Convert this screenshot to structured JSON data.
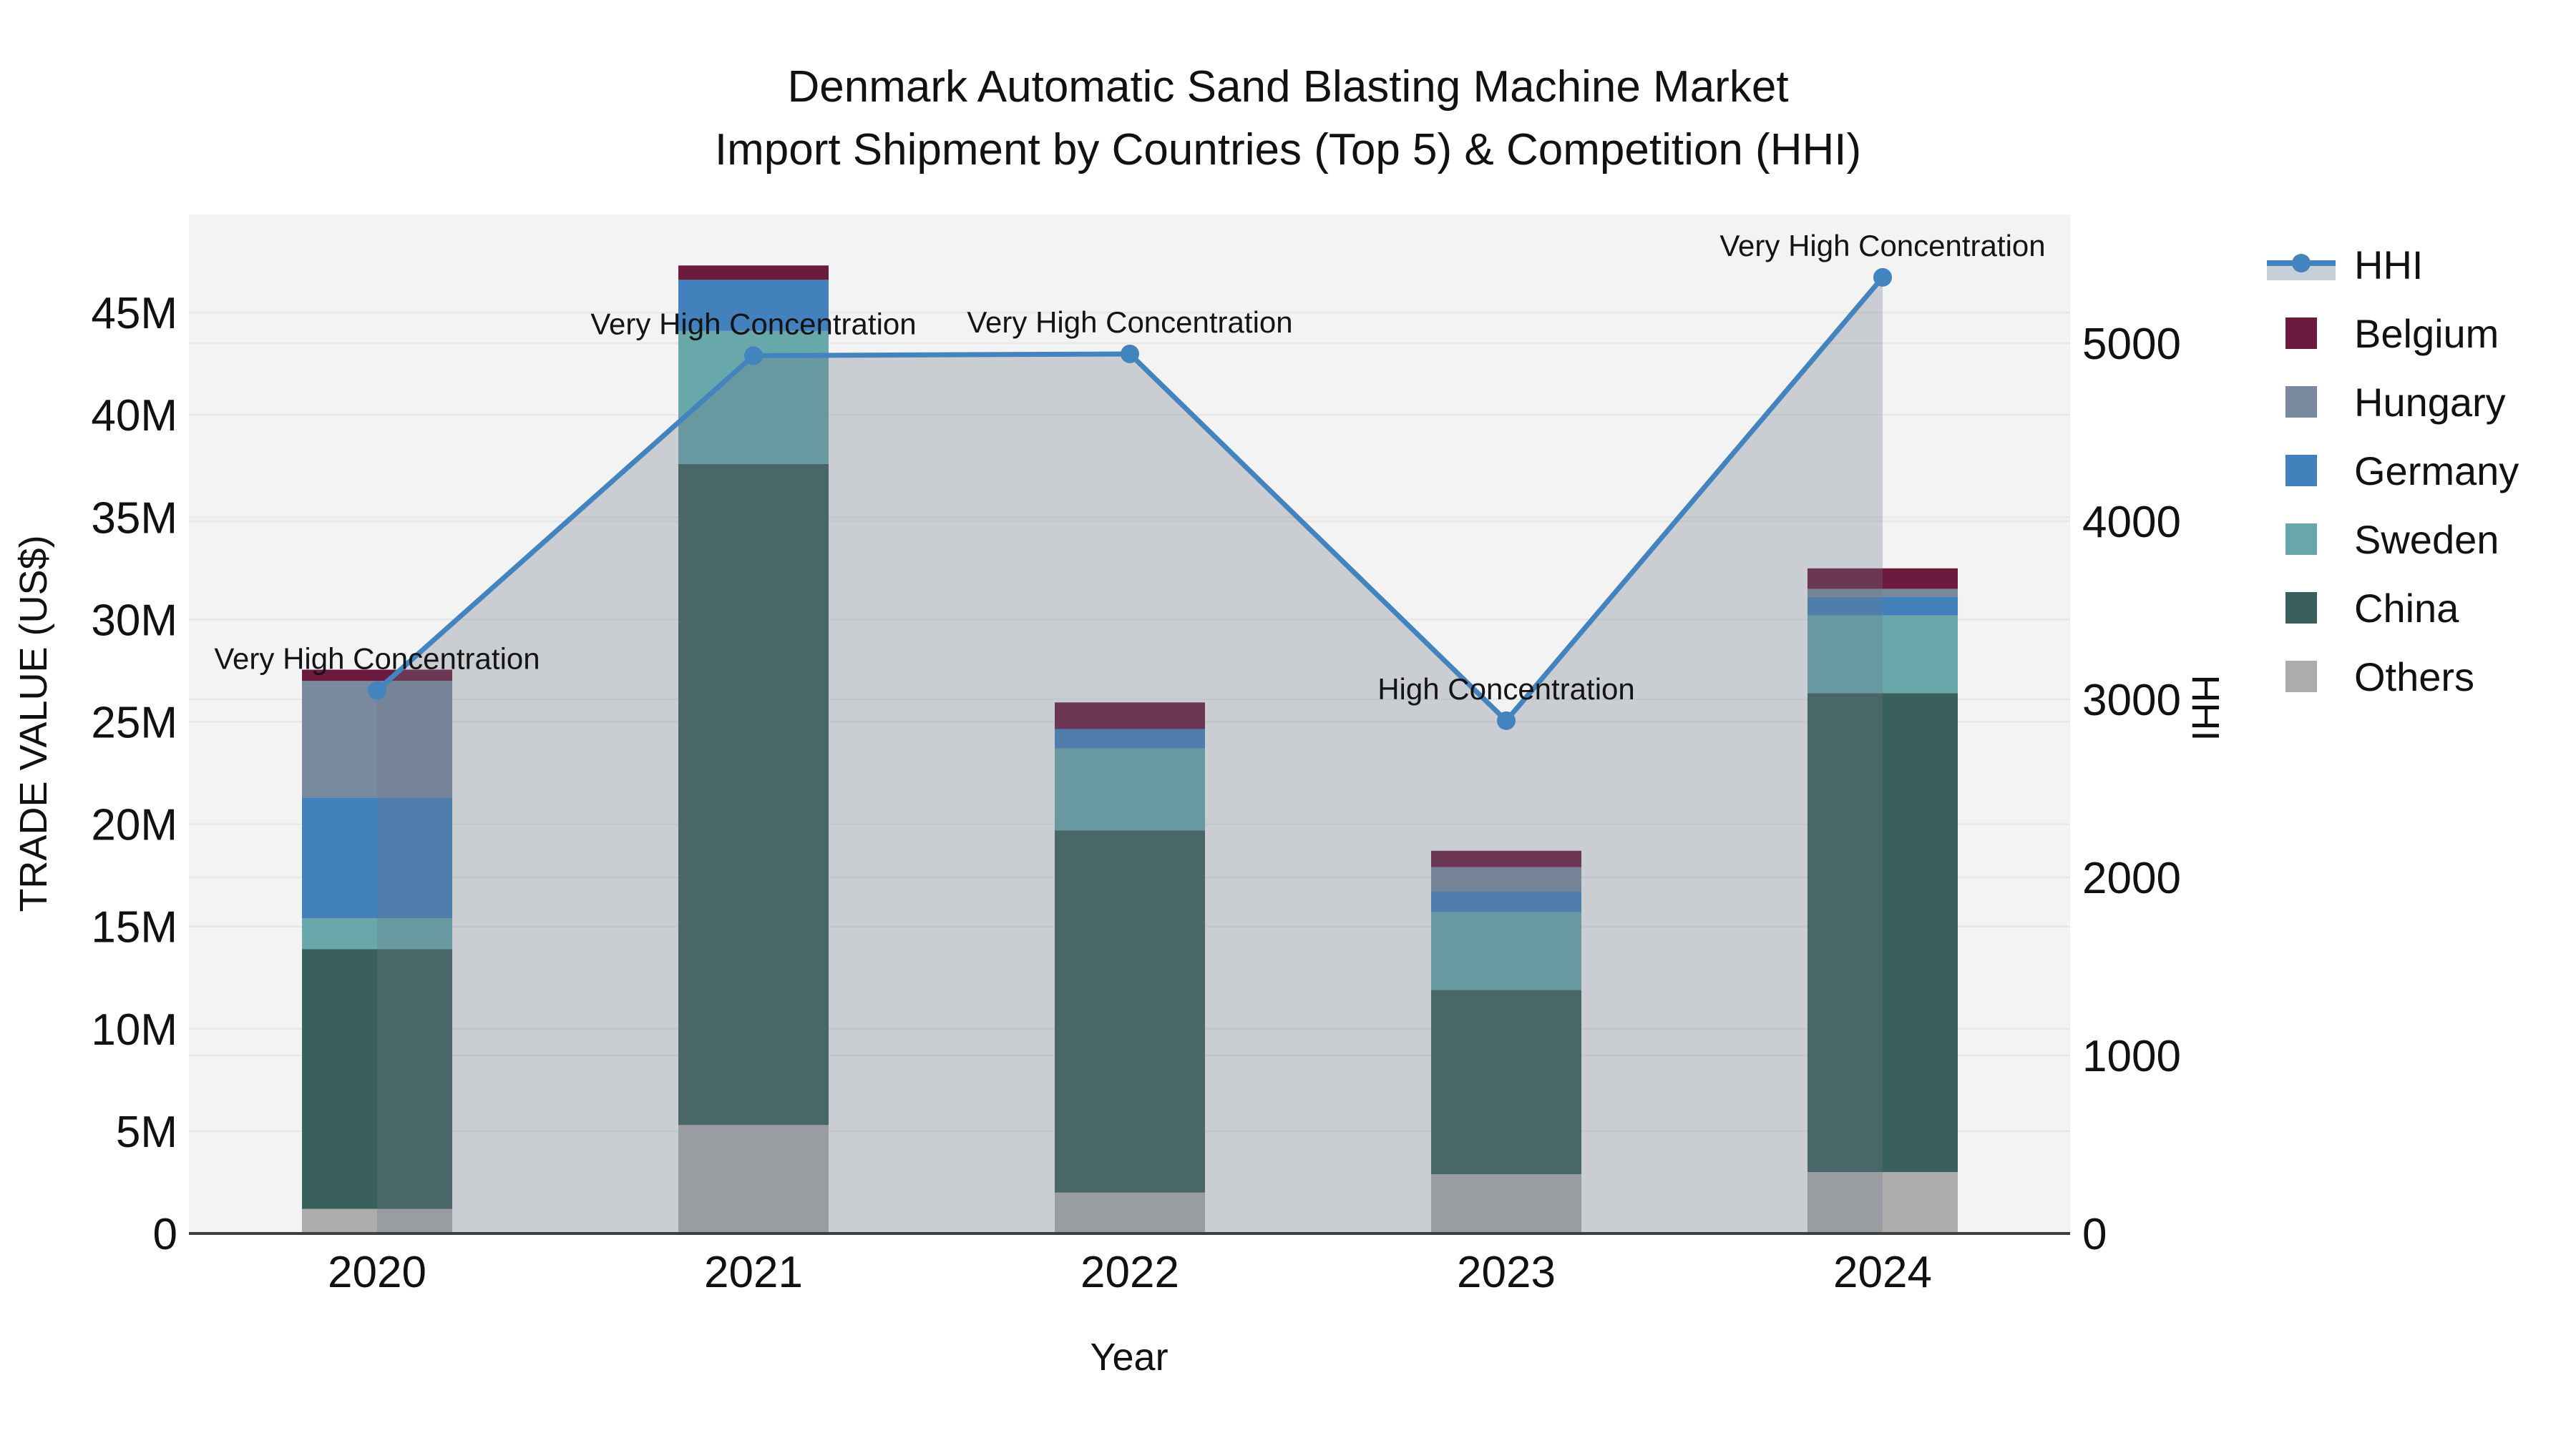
{
  "title": {
    "line1": "Denmark Automatic Sand Blasting Machine Market",
    "line2": "Import Shipment by Countries (Top 5) & Competition (HHI)"
  },
  "chart_data": {
    "type": "composite-stacked-bar-line",
    "categories": [
      "2020",
      "2021",
      "2022",
      "2023",
      "2024"
    ],
    "bar_unit": "M US$",
    "bar_series": [
      {
        "name": "Others",
        "color": "#ACACAC",
        "values": [
          1.2,
          5.3,
          2.0,
          2.9,
          3.0
        ]
      },
      {
        "name": "China",
        "color": "#3A605C",
        "values": [
          12.7,
          32.3,
          17.7,
          9.0,
          23.4
        ]
      },
      {
        "name": "Sweden",
        "color": "#68A8AB",
        "values": [
          1.5,
          6.5,
          4.0,
          3.8,
          3.8
        ]
      },
      {
        "name": "Germany",
        "color": "#4381BD",
        "values": [
          5.9,
          2.5,
          0.95,
          1.0,
          0.9
        ]
      },
      {
        "name": "Hungary",
        "color": "#7A8A9E",
        "values": [
          5.7,
          0,
          0,
          1.2,
          0.4
        ]
      },
      {
        "name": "Belgium",
        "color": "#6B1C3E",
        "values": [
          0.55,
          0.7,
          1.3,
          0.8,
          1.0
        ]
      }
    ],
    "bar_totals_M": [
      27.55,
      47.3,
      25.95,
      18.7,
      32.5
    ],
    "line_series": {
      "name": "HHI",
      "color": "#4484BE",
      "area_fill": "rgba(110,119,137,0.30)",
      "values": [
        3050,
        4930,
        4940,
        2880,
        5370
      ]
    },
    "annotations": [
      {
        "category": "2020",
        "text": "Very High Concentration"
      },
      {
        "category": "2021",
        "text": "Very High Concentration"
      },
      {
        "category": "2022",
        "text": "Very High Concentration"
      },
      {
        "category": "2023",
        "text": "High Concentration"
      },
      {
        "category": "2024",
        "text": "Very High Concentration"
      }
    ],
    "y_left": {
      "label": "TRADE VALUE (US$)",
      "ticks": [
        "0",
        "5M",
        "10M",
        "15M",
        "20M",
        "25M",
        "30M",
        "35M",
        "40M",
        "45M"
      ],
      "tick_values_M": [
        0,
        5,
        10,
        15,
        20,
        25,
        30,
        35,
        40,
        45
      ],
      "range_M": [
        0,
        49.8
      ]
    },
    "y_right": {
      "label": "HHI",
      "ticks": [
        "0",
        "1000",
        "2000",
        "3000",
        "4000",
        "5000"
      ],
      "tick_values": [
        0,
        1000,
        2000,
        3000,
        4000,
        5000
      ],
      "range": [
        0,
        5725
      ]
    },
    "x": {
      "label": "Year"
    },
    "grid": true,
    "legend_position": "right"
  },
  "legend": {
    "items": [
      {
        "label": "HHI",
        "type": "line",
        "color": "#4484BE",
        "area_color": "#C9CFD9"
      },
      {
        "label": "Belgium",
        "type": "square",
        "color": "#6B1C3E"
      },
      {
        "label": "Hungary",
        "type": "square",
        "color": "#7A8A9E"
      },
      {
        "label": "Germany",
        "type": "square",
        "color": "#4381BD"
      },
      {
        "label": "Sweden",
        "type": "square",
        "color": "#68A8AB"
      },
      {
        "label": "China",
        "type": "square",
        "color": "#3A605C"
      },
      {
        "label": "Others",
        "type": "square",
        "color": "#ACACAC"
      }
    ]
  },
  "style": {
    "plot_bg": "#f3f3f3",
    "gridline": "#e7e7e7",
    "axis_line": "#3f3f3f",
    "text": "#111111"
  }
}
